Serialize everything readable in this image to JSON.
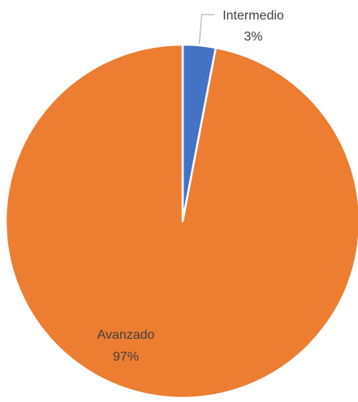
{
  "chart_data": {
    "type": "pie",
    "categories": [
      "Intermedio",
      "Avanzado"
    ],
    "values": [
      3,
      97
    ],
    "value_labels": [
      "3%",
      "97%"
    ],
    "colors": [
      "#4472c4",
      "#ed7d31"
    ],
    "label_color_outside": "#404040",
    "label_color_inside": "#404040",
    "slice_border_color": "#ffffff",
    "leader_line_color": "#a6a6a6",
    "start_angle_deg": 0,
    "direction": "clockwise",
    "legend": "none"
  }
}
